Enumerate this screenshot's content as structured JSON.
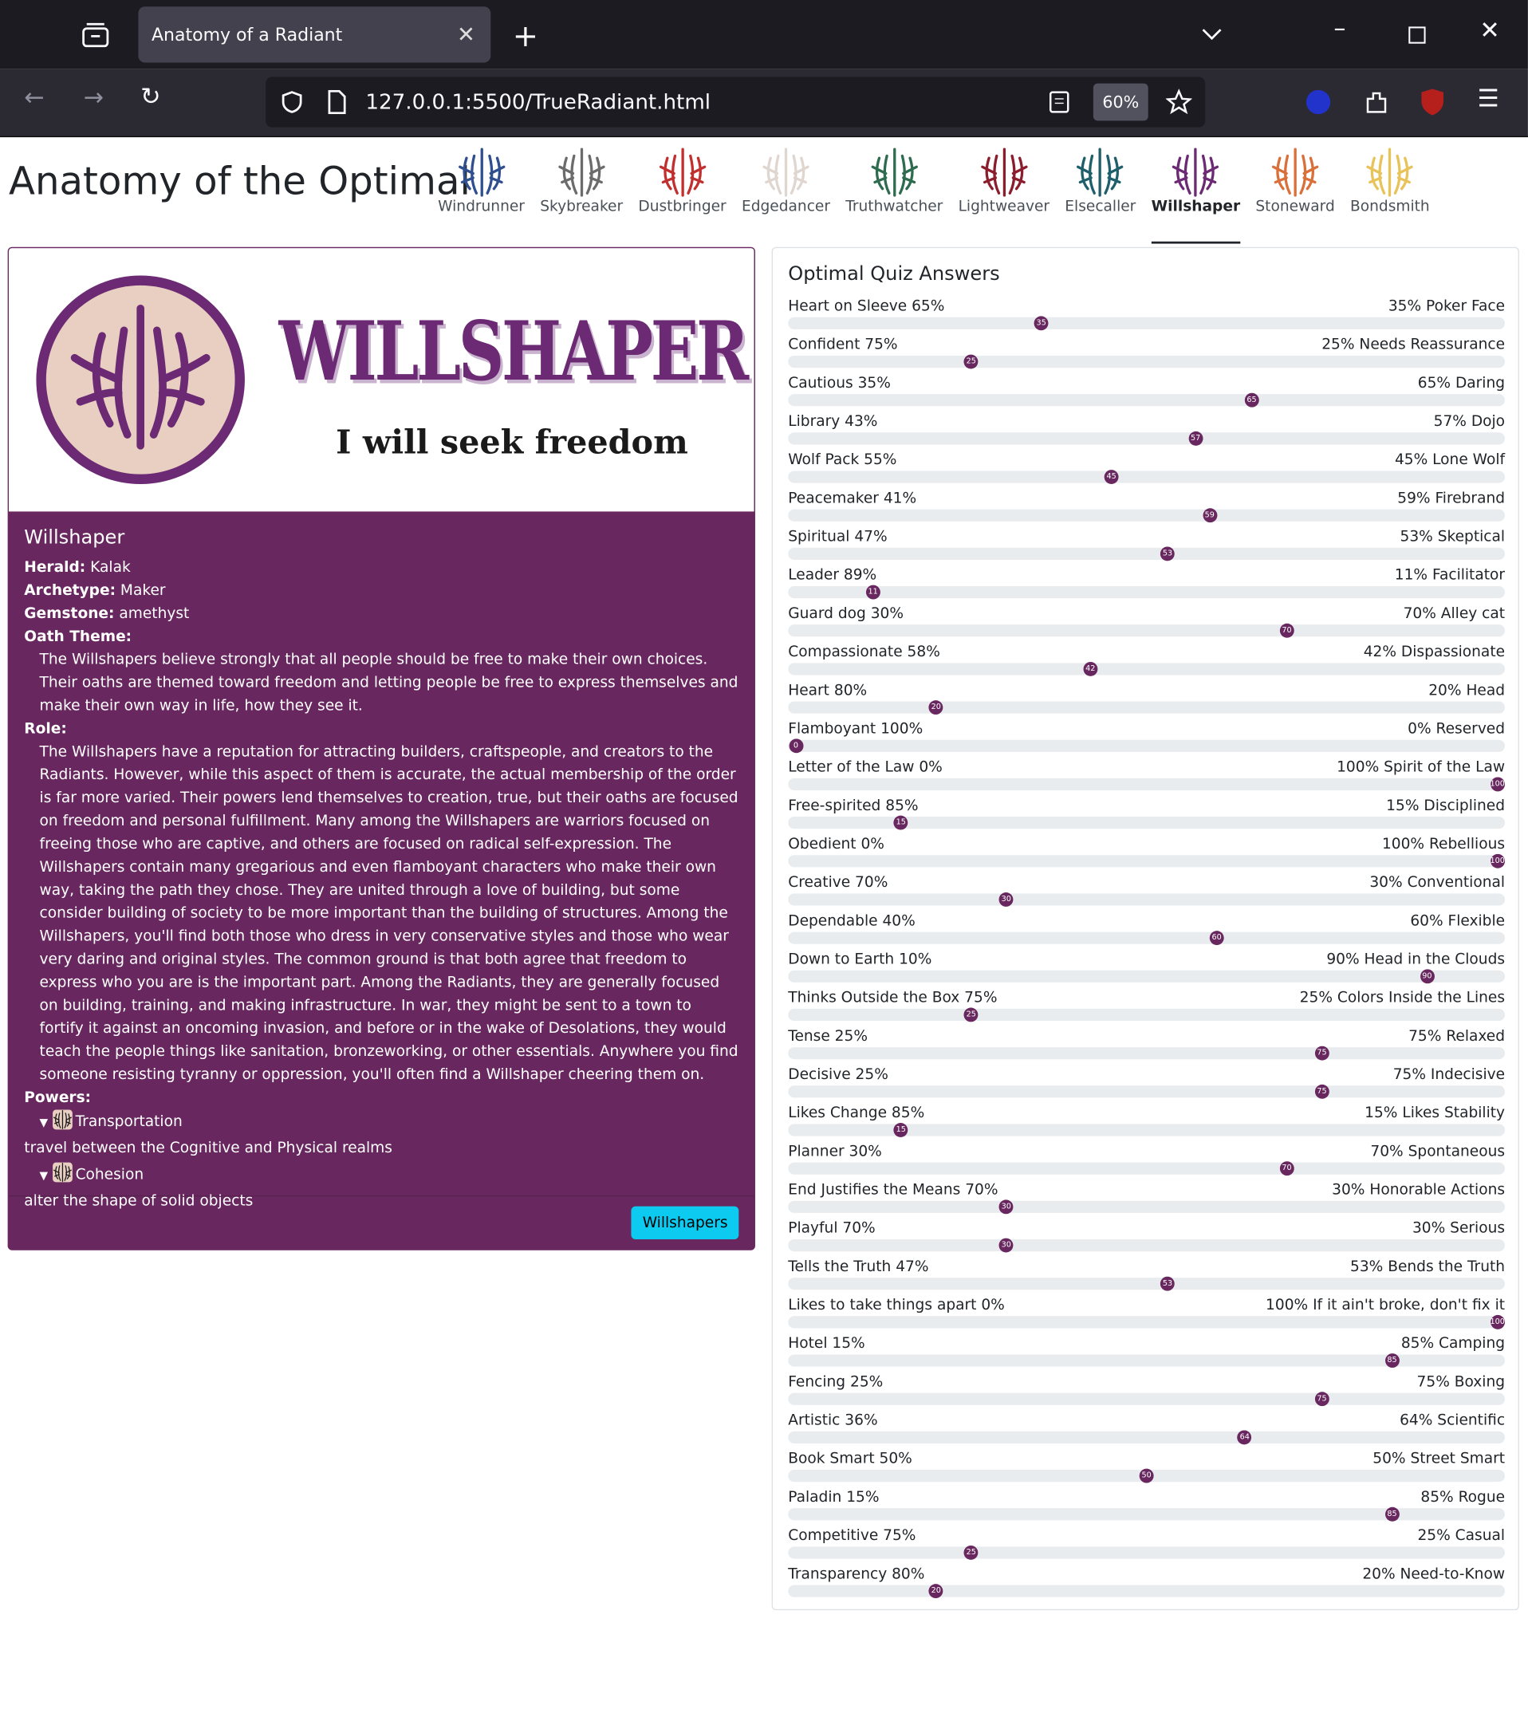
{
  "browser": {
    "tab_title": "Anatomy of a Radiant",
    "url": "127.0.0.1:5500/TrueRadiant.html",
    "zoom": "60%"
  },
  "header": {
    "title": "Anatomy of the Optimal",
    "active": 7,
    "nav": [
      {
        "label": "Windrunner",
        "color": "#2f4f8f"
      },
      {
        "label": "Skybreaker",
        "color": "#6c6c6c"
      },
      {
        "label": "Dustbringer",
        "color": "#c0302e"
      },
      {
        "label": "Edgedancer",
        "color": "#e0d6d0"
      },
      {
        "label": "Truthwatcher",
        "color": "#2e6b4f"
      },
      {
        "label": "Lightweaver",
        "color": "#8b1d2c"
      },
      {
        "label": "Elsecaller",
        "color": "#1f5f6b"
      },
      {
        "label": "Willshaper",
        "color": "#6b2a73"
      },
      {
        "label": "Stoneward",
        "color": "#d9703a"
      },
      {
        "label": "Bondsmith",
        "color": "#e8c35a"
      }
    ]
  },
  "card": {
    "banner_title": "WILLSHAPER",
    "motto": "I will seek freedom",
    "name": "Willshaper",
    "fields": [
      {
        "label": "Herald:",
        "value": "Kalak"
      },
      {
        "label": "Archetype:",
        "value": "Maker"
      },
      {
        "label": "Gemstone:",
        "value": "amethyst"
      }
    ],
    "oath_label": "Oath Theme:",
    "oath": "The Willshapers believe strongly that all people should be free to make their own choices. Their oaths are themed toward freedom and letting people be free to express themselves and make their own way in life, how they see it.",
    "role_label": "Role:",
    "role": "The Willshapers have a reputation for attracting builders, craftspeople, and creators to the Radiants. However, while this aspect of them is accurate, the actual membership of the order is far more varied. Their powers lend themselves to creation, true, but their oaths are focused on freedom and personal fulfillment. Many among the Willshapers are warriors focused on freeing those who are captive, and others are focused on radical self-expression. The Willshapers contain many gregarious and even flamboyant characters who make their own way, taking the path they chose. They are united through a love of building, but some consider building of society to be more important than the building of structures. Among the Willshapers, you'll find both those who dress in very conservative styles and those who wear very daring and original styles. The common ground is that both agree that freedom to express who you are is the important part. Among the Radiants, they are generally focused on building, training, and making infrastructure. In war, they might be sent to a town to fortify it against an oncoming invasion, and before or in the wake of Desolations, they would teach the people things like sanitation, bronzeworking, or other essentials. Anywhere you find someone resisting tyranny or oppression, you'll often find a Willshaper cheering them on.",
    "powers_label": "Powers:",
    "powers": [
      {
        "name": "Transportation",
        "description": "travel between the Cognitive and Physical realms"
      },
      {
        "name": "Cohesion",
        "description": "alter the shape of solid objects"
      }
    ],
    "button": "Willshapers"
  },
  "quiz": {
    "title": "Optimal Quiz Answers",
    "range": [
      0,
      100
    ],
    "items": [
      {
        "left": "Heart on Sleeve 65%",
        "right": "35% Poker Face",
        "value": 35
      },
      {
        "left": "Confident 75%",
        "right": "25% Needs Reassurance",
        "value": 25
      },
      {
        "left": "Cautious 35%",
        "right": "65% Daring",
        "value": 65
      },
      {
        "left": "Library 43%",
        "right": "57% Dojo",
        "value": 57
      },
      {
        "left": "Wolf Pack 55%",
        "right": "45% Lone Wolf",
        "value": 45
      },
      {
        "left": "Peacemaker 41%",
        "right": "59% Firebrand",
        "value": 59
      },
      {
        "left": "Spiritual 47%",
        "right": "53% Skeptical",
        "value": 53
      },
      {
        "left": "Leader 89%",
        "right": "11% Facilitator",
        "value": 11
      },
      {
        "left": "Guard dog 30%",
        "right": "70% Alley cat",
        "value": 70
      },
      {
        "left": "Compassionate 58%",
        "right": "42% Dispassionate",
        "value": 42
      },
      {
        "left": "Heart 80%",
        "right": "20% Head",
        "value": 20
      },
      {
        "left": "Flamboyant 100%",
        "right": "0% Reserved",
        "value": 0
      },
      {
        "left": "Letter of the Law 0%",
        "right": "100% Spirit of the Law",
        "value": 100
      },
      {
        "left": "Free-spirited 85%",
        "right": "15% Disciplined",
        "value": 15
      },
      {
        "left": "Obedient 0%",
        "right": "100% Rebellious",
        "value": 100
      },
      {
        "left": "Creative 70%",
        "right": "30% Conventional",
        "value": 30
      },
      {
        "left": "Dependable 40%",
        "right": "60% Flexible",
        "value": 60
      },
      {
        "left": "Down to Earth 10%",
        "right": "90% Head in the Clouds",
        "value": 90
      },
      {
        "left": "Thinks Outside the Box 75%",
        "right": "25% Colors Inside the Lines",
        "value": 25
      },
      {
        "left": "Tense 25%",
        "right": "75% Relaxed",
        "value": 75
      },
      {
        "left": "Decisive 25%",
        "right": "75% Indecisive",
        "value": 75
      },
      {
        "left": "Likes Change 85%",
        "right": "15% Likes Stability",
        "value": 15
      },
      {
        "left": "Planner 30%",
        "right": "70% Spontaneous",
        "value": 70
      },
      {
        "left": "End Justifies the Means 70%",
        "right": "30% Honorable Actions",
        "value": 30
      },
      {
        "left": "Playful 70%",
        "right": "30% Serious",
        "value": 30
      },
      {
        "left": "Tells the Truth 47%",
        "right": "53% Bends the Truth",
        "value": 53
      },
      {
        "left": "Likes to take things apart 0%",
        "right": "100% If it ain't broke, don't fix it",
        "value": 100
      },
      {
        "left": "Hotel 15%",
        "right": "85% Camping",
        "value": 85
      },
      {
        "left": "Fencing 25%",
        "right": "75% Boxing",
        "value": 75
      },
      {
        "left": "Artistic 36%",
        "right": "64% Scientific",
        "value": 64
      },
      {
        "left": "Book Smart 50%",
        "right": "50% Street Smart",
        "value": 50
      },
      {
        "left": "Paladin 15%",
        "right": "85% Rogue",
        "value": 85
      },
      {
        "left": "Competitive 75%",
        "right": "25% Casual",
        "value": 25
      },
      {
        "left": "Transparency 80%",
        "right": "20% Need-to-Know",
        "value": 20
      }
    ]
  }
}
